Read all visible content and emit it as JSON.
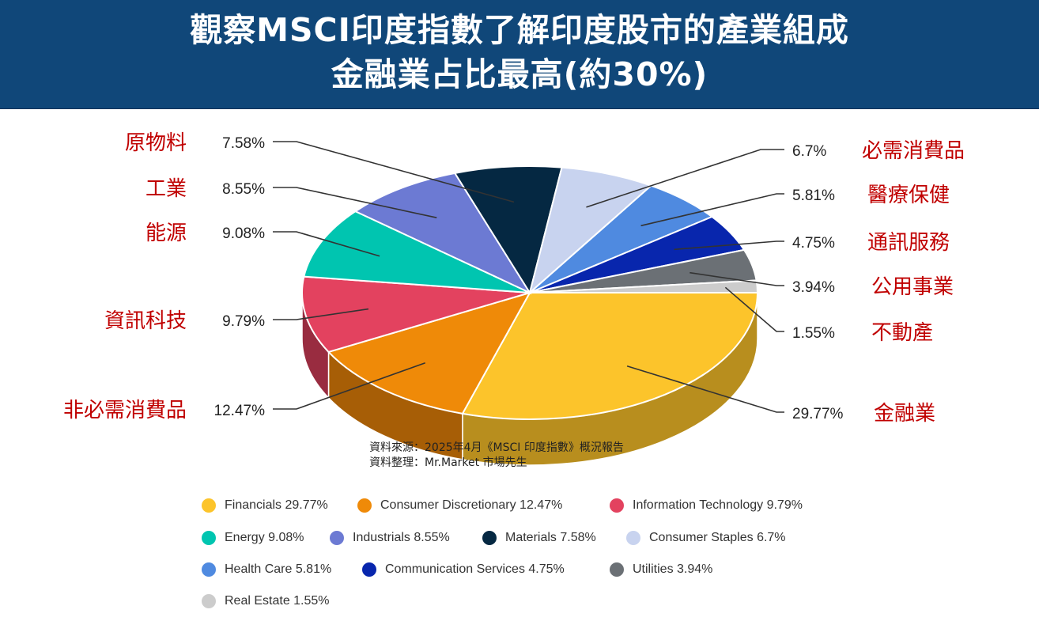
{
  "title": {
    "line1": "觀察MSCI印度指數了解印度股市的產業組成",
    "line2": "金融業占比最高(約30%)"
  },
  "source": {
    "line1": "資料來源：2025年4月《MSCI 印度指數》概況報告",
    "line2": "資料整理：Mr.Market 市場先生"
  },
  "chart_data": {
    "type": "pie",
    "series": [
      {
        "name": "Financials",
        "label_zh": "金融業",
        "value": 29.77,
        "value_label": "29.77%",
        "legend": "Financials 29.77%",
        "color": "#fcc42b",
        "side_color": "#b88e1e"
      },
      {
        "name": "Consumer Discretionary",
        "label_zh": "非必需消費品",
        "value": 12.47,
        "value_label": "12.47%",
        "legend": "Consumer Discretionary 12.47%",
        "color": "#ef8a08",
        "side_color": "#a75e06"
      },
      {
        "name": "Information Technology",
        "label_zh": "資訊科技",
        "value": 9.79,
        "value_label": "9.79%",
        "legend": "Information Technology 9.79%",
        "color": "#e3425f",
        "side_color": "#992c40"
      },
      {
        "name": "Energy",
        "label_zh": "能源",
        "value": 9.08,
        "value_label": "9.08%",
        "legend": "Energy 9.08%",
        "color": "#00c5b0",
        "side_color": "#008a7b"
      },
      {
        "name": "Industrials",
        "label_zh": "工業",
        "value": 8.55,
        "value_label": "8.55%",
        "legend": "Industrials 8.55%",
        "color": "#6c7ad3",
        "side_color": "#4b5594"
      },
      {
        "name": "Materials",
        "label_zh": "原物料",
        "value": 7.58,
        "value_label": "7.58%",
        "legend": "Materials 7.58%",
        "color": "#052842",
        "side_color": "#031a2b"
      },
      {
        "name": "Consumer Staples",
        "label_zh": "必需消費品",
        "value": 6.7,
        "value_label": "6.7%",
        "legend": "Consumer Staples 6.7%",
        "color": "#c8d3ef",
        "side_color": "#8c94a7"
      },
      {
        "name": "Health Care",
        "label_zh": "醫療保健",
        "value": 5.81,
        "value_label": "5.81%",
        "legend": "Health Care 5.81%",
        "color": "#4f8ae0",
        "side_color": "#37609d"
      },
      {
        "name": "Communication Services",
        "label_zh": "通訊服務",
        "value": 4.75,
        "value_label": "4.75%",
        "legend": "Communication Services 4.75%",
        "color": "#0826ad",
        "side_color": "#051a79"
      },
      {
        "name": "Utilities",
        "label_zh": "公用事業",
        "value": 3.94,
        "value_label": "3.94%",
        "legend": "Utilities 3.94%",
        "color": "#6b7075",
        "side_color": "#4a4e52"
      },
      {
        "name": "Real Estate",
        "label_zh": "不動產",
        "value": 1.55,
        "value_label": "1.55%",
        "legend": "Real Estate 1.55%",
        "color": "#cccccc",
        "side_color": "#8f8f8f"
      }
    ],
    "label_color": "#c00000",
    "style": "3d-tilted",
    "legend_position": "bottom"
  }
}
